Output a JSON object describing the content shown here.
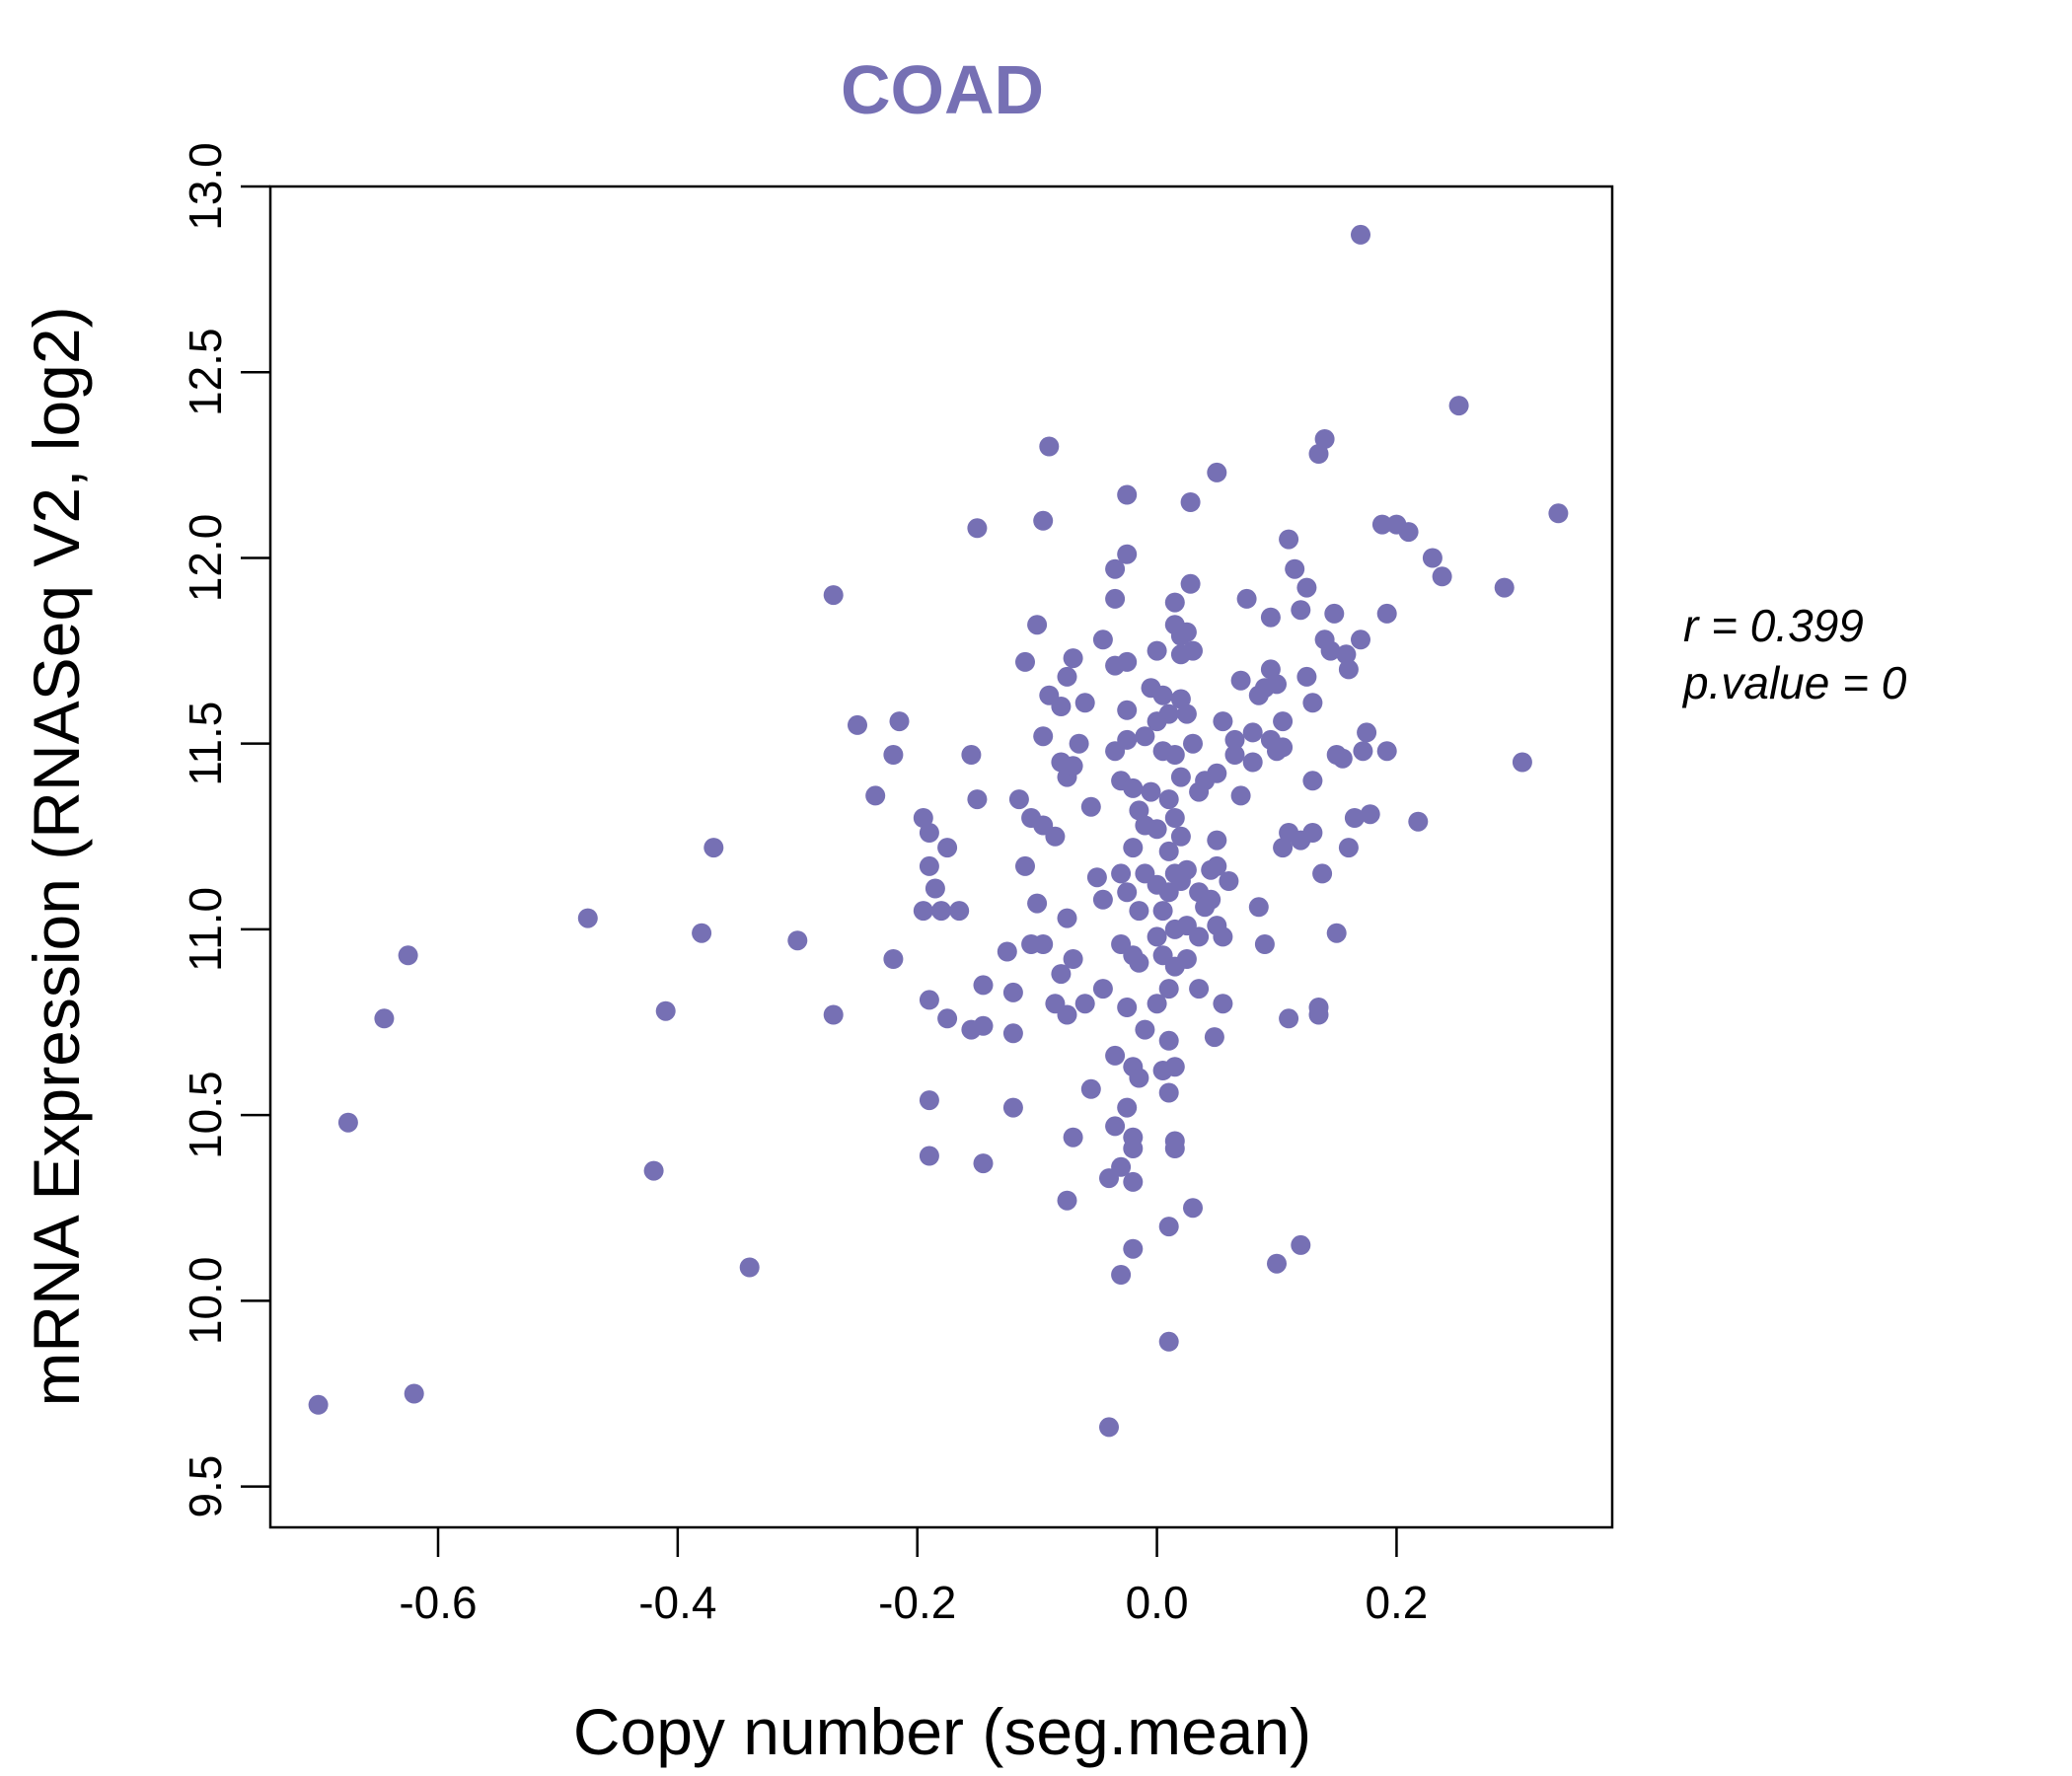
{
  "chart_data": {
    "type": "scatter",
    "title": "COAD",
    "xlabel": "Copy number (seg.mean)",
    "ylabel": "mRNA Expression (RNASeq V2, log2)",
    "xlim": [
      -0.74,
      0.38
    ],
    "ylim": [
      9.39,
      13.0
    ],
    "x_ticks": [
      -0.6,
      -0.4,
      -0.2,
      0.0,
      0.2
    ],
    "x_tick_labels": [
      "-0.6",
      "-0.4",
      "-0.2",
      "0.0",
      "0.2"
    ],
    "y_ticks": [
      9.5,
      10.0,
      10.5,
      11.0,
      11.5,
      12.0,
      12.5,
      13.0
    ],
    "y_tick_labels": [
      "9.5",
      "10.0",
      "10.5",
      "11.0",
      "11.5",
      "12.0",
      "12.5",
      "13.0"
    ],
    "grid": false,
    "point_color": "#7670b4",
    "annotation": {
      "r_label": "r = 0.399",
      "p_label": "p.value = 0"
    },
    "points": [
      [
        -0.7,
        9.72
      ],
      [
        -0.62,
        9.75
      ],
      [
        -0.675,
        10.48
      ],
      [
        -0.645,
        10.76
      ],
      [
        -0.625,
        10.93
      ],
      [
        -0.475,
        11.03
      ],
      [
        -0.42,
        10.35
      ],
      [
        -0.41,
        10.78
      ],
      [
        -0.38,
        10.99
      ],
      [
        -0.37,
        11.22
      ],
      [
        -0.34,
        10.09
      ],
      [
        -0.3,
        10.97
      ],
      [
        -0.27,
        11.9
      ],
      [
        -0.27,
        10.77
      ],
      [
        -0.25,
        11.55
      ],
      [
        -0.235,
        11.36
      ],
      [
        -0.22,
        11.47
      ],
      [
        -0.215,
        11.56
      ],
      [
        -0.22,
        10.92
      ],
      [
        -0.195,
        11.3
      ],
      [
        -0.19,
        11.26
      ],
      [
        -0.19,
        11.17
      ],
      [
        -0.185,
        11.11
      ],
      [
        -0.195,
        11.05
      ],
      [
        -0.18,
        11.05
      ],
      [
        -0.175,
        11.22
      ],
      [
        -0.165,
        11.05
      ],
      [
        -0.19,
        10.81
      ],
      [
        -0.175,
        10.76
      ],
      [
        -0.19,
        10.54
      ],
      [
        -0.19,
        10.39
      ],
      [
        -0.155,
        10.73
      ],
      [
        -0.145,
        10.74
      ],
      [
        -0.145,
        10.37
      ],
      [
        -0.155,
        11.47
      ],
      [
        -0.15,
        11.35
      ],
      [
        -0.15,
        12.08
      ],
      [
        -0.145,
        10.85
      ],
      [
        -0.125,
        10.94
      ],
      [
        -0.12,
        10.83
      ],
      [
        -0.115,
        11.35
      ],
      [
        -0.12,
        10.72
      ],
      [
        -0.12,
        10.52
      ],
      [
        -0.11,
        11.72
      ],
      [
        -0.11,
        11.17
      ],
      [
        -0.105,
        11.3
      ],
      [
        -0.105,
        10.96
      ],
      [
        -0.1,
        11.82
      ],
      [
        -0.095,
        11.52
      ],
      [
        -0.095,
        11.28
      ],
      [
        -0.1,
        11.07
      ],
      [
        -0.095,
        10.96
      ],
      [
        -0.09,
        11.63
      ],
      [
        -0.085,
        10.8
      ],
      [
        -0.09,
        12.3
      ],
      [
        -0.095,
        12.1
      ],
      [
        -0.08,
        11.45
      ],
      [
        -0.085,
        11.25
      ],
      [
        -0.08,
        11.6
      ],
      [
        -0.075,
        11.68
      ],
      [
        -0.075,
        11.41
      ],
      [
        -0.08,
        10.88
      ],
      [
        -0.075,
        11.03
      ],
      [
        -0.075,
        10.77
      ],
      [
        -0.07,
        11.73
      ],
      [
        -0.07,
        10.92
      ],
      [
        -0.07,
        10.44
      ],
      [
        -0.075,
        10.27
      ],
      [
        -0.07,
        11.44
      ],
      [
        -0.065,
        11.5
      ],
      [
        -0.06,
        11.61
      ],
      [
        -0.06,
        10.8
      ],
      [
        -0.055,
        10.57
      ],
      [
        -0.055,
        11.33
      ],
      [
        -0.05,
        11.14
      ],
      [
        -0.045,
        11.78
      ],
      [
        -0.045,
        11.08
      ],
      [
        -0.045,
        10.84
      ],
      [
        -0.035,
        11.97
      ],
      [
        -0.035,
        11.89
      ],
      [
        -0.035,
        11.71
      ],
      [
        -0.035,
        11.48
      ],
      [
        -0.03,
        11.4
      ],
      [
        -0.04,
        10.33
      ],
      [
        -0.04,
        9.66
      ],
      [
        -0.035,
        10.66
      ],
      [
        -0.035,
        10.47
      ],
      [
        -0.03,
        11.15
      ],
      [
        -0.03,
        10.96
      ],
      [
        -0.03,
        10.36
      ],
      [
        -0.03,
        10.07
      ],
      [
        -0.025,
        12.17
      ],
      [
        -0.025,
        12.01
      ],
      [
        -0.025,
        11.72
      ],
      [
        -0.025,
        11.59
      ],
      [
        -0.025,
        11.51
      ],
      [
        -0.02,
        11.38
      ],
      [
        -0.02,
        11.22
      ],
      [
        -0.025,
        11.1
      ],
      [
        -0.02,
        10.93
      ],
      [
        -0.025,
        10.79
      ],
      [
        -0.02,
        10.63
      ],
      [
        -0.025,
        10.52
      ],
      [
        -0.02,
        10.44
      ],
      [
        -0.02,
        10.41
      ],
      [
        -0.02,
        10.32
      ],
      [
        -0.02,
        10.14
      ],
      [
        -0.015,
        11.32
      ],
      [
        -0.015,
        11.05
      ],
      [
        -0.015,
        10.91
      ],
      [
        -0.01,
        11.52
      ],
      [
        -0.01,
        11.28
      ],
      [
        -0.01,
        11.15
      ],
      [
        -0.005,
        11.65
      ],
      [
        -0.005,
        11.37
      ],
      [
        -0.01,
        10.73
      ],
      [
        -0.015,
        10.6
      ],
      [
        0.0,
        11.75
      ],
      [
        0.0,
        11.56
      ],
      [
        0.0,
        11.27
      ],
      [
        0.0,
        11.12
      ],
      [
        0.0,
        10.98
      ],
      [
        0.0,
        10.8
      ],
      [
        0.005,
        11.63
      ],
      [
        0.005,
        11.48
      ],
      [
        0.005,
        11.05
      ],
      [
        0.005,
        10.93
      ],
      [
        0.005,
        10.62
      ],
      [
        0.01,
        11.58
      ],
      [
        0.01,
        11.35
      ],
      [
        0.01,
        11.21
      ],
      [
        0.01,
        11.1
      ],
      [
        0.01,
        10.84
      ],
      [
        0.01,
        10.7
      ],
      [
        0.01,
        10.56
      ],
      [
        0.01,
        10.2
      ],
      [
        0.01,
        9.89
      ],
      [
        0.015,
        11.88
      ],
      [
        0.015,
        11.82
      ],
      [
        0.015,
        11.47
      ],
      [
        0.015,
        11.3
      ],
      [
        0.015,
        11.15
      ],
      [
        0.015,
        11.0
      ],
      [
        0.015,
        10.9
      ],
      [
        0.015,
        10.63
      ],
      [
        0.015,
        10.43
      ],
      [
        0.015,
        10.41
      ],
      [
        0.02,
        11.79
      ],
      [
        0.02,
        11.74
      ],
      [
        0.02,
        11.62
      ],
      [
        0.02,
        11.41
      ],
      [
        0.02,
        11.25
      ],
      [
        0.02,
        11.13
      ],
      [
        0.025,
        11.8
      ],
      [
        0.025,
        11.58
      ],
      [
        0.025,
        11.16
      ],
      [
        0.025,
        11.01
      ],
      [
        0.025,
        10.92
      ],
      [
        0.028,
        12.15
      ],
      [
        0.028,
        11.93
      ],
      [
        0.03,
        11.75
      ],
      [
        0.03,
        11.5
      ],
      [
        0.03,
        10.25
      ],
      [
        0.035,
        11.37
      ],
      [
        0.035,
        11.1
      ],
      [
        0.035,
        10.98
      ],
      [
        0.035,
        10.84
      ],
      [
        0.04,
        11.4
      ],
      [
        0.04,
        11.06
      ],
      [
        0.045,
        11.16
      ],
      [
        0.045,
        11.08
      ],
      [
        0.048,
        10.71
      ],
      [
        0.05,
        12.23
      ],
      [
        0.05,
        11.42
      ],
      [
        0.05,
        11.24
      ],
      [
        0.05,
        11.17
      ],
      [
        0.05,
        11.01
      ],
      [
        0.055,
        11.56
      ],
      [
        0.055,
        10.8
      ],
      [
        0.055,
        10.98
      ],
      [
        0.06,
        11.13
      ],
      [
        0.065,
        11.51
      ],
      [
        0.065,
        11.47
      ],
      [
        0.07,
        11.36
      ],
      [
        0.07,
        11.67
      ],
      [
        0.075,
        11.89
      ],
      [
        0.08,
        11.53
      ],
      [
        0.08,
        11.45
      ],
      [
        0.085,
        11.63
      ],
      [
        0.085,
        11.06
      ],
      [
        0.09,
        11.65
      ],
      [
        0.09,
        10.96
      ],
      [
        0.095,
        11.84
      ],
      [
        0.095,
        11.7
      ],
      [
        0.095,
        11.51
      ],
      [
        0.1,
        11.66
      ],
      [
        0.1,
        11.48
      ],
      [
        0.1,
        10.1
      ],
      [
        0.105,
        11.56
      ],
      [
        0.105,
        11.49
      ],
      [
        0.105,
        11.22
      ],
      [
        0.11,
        12.05
      ],
      [
        0.11,
        10.76
      ],
      [
        0.11,
        11.26
      ],
      [
        0.115,
        11.97
      ],
      [
        0.12,
        11.86
      ],
      [
        0.12,
        11.24
      ],
      [
        0.12,
        10.15
      ],
      [
        0.125,
        11.68
      ],
      [
        0.125,
        11.92
      ],
      [
        0.13,
        11.61
      ],
      [
        0.13,
        11.4
      ],
      [
        0.13,
        11.26
      ],
      [
        0.135,
        12.28
      ],
      [
        0.135,
        10.79
      ],
      [
        0.135,
        10.77
      ],
      [
        0.138,
        11.15
      ],
      [
        0.14,
        12.32
      ],
      [
        0.14,
        11.78
      ],
      [
        0.145,
        11.75
      ],
      [
        0.148,
        11.85
      ],
      [
        0.15,
        11.47
      ],
      [
        0.15,
        10.99
      ],
      [
        0.155,
        11.46
      ],
      [
        0.158,
        11.74
      ],
      [
        0.16,
        11.7
      ],
      [
        0.16,
        11.22
      ],
      [
        0.165,
        11.3
      ],
      [
        0.17,
        12.87
      ],
      [
        0.17,
        11.78
      ],
      [
        0.172,
        11.48
      ],
      [
        0.175,
        11.53
      ],
      [
        0.178,
        11.31
      ],
      [
        0.188,
        12.09
      ],
      [
        0.192,
        11.85
      ],
      [
        0.192,
        11.48
      ],
      [
        0.2,
        12.09
      ],
      [
        0.21,
        12.07
      ],
      [
        0.218,
        11.29
      ],
      [
        0.23,
        12.0
      ],
      [
        0.238,
        11.95
      ],
      [
        0.252,
        12.41
      ],
      [
        0.29,
        11.92
      ],
      [
        0.305,
        11.45
      ],
      [
        0.335,
        12.12
      ]
    ]
  }
}
